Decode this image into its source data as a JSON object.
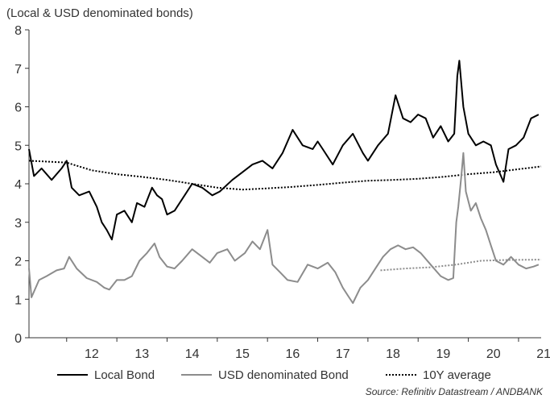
{
  "chart_data": {
    "type": "line",
    "subtitle": "(Local & USD denominated bonds)",
    "source": "Source: Refinitiv Datastream / ANDBANK",
    "x_ticks": [
      "12",
      "13",
      "14",
      "15",
      "16",
      "17",
      "18",
      "19",
      "20",
      "21"
    ],
    "y_ticks": [
      "0",
      "1",
      "2",
      "3",
      "4",
      "5",
      "6",
      "7",
      "8"
    ],
    "xlim": [
      2011.25,
      2021.45
    ],
    "ylim": [
      0,
      8
    ],
    "grid": false,
    "legend_position": "bottom",
    "series": [
      {
        "name": "Local Bond",
        "color": "#000000",
        "style": "solid",
        "points": [
          [
            2011.25,
            4.9
          ],
          [
            2011.35,
            4.2
          ],
          [
            2011.5,
            4.4
          ],
          [
            2011.7,
            4.1
          ],
          [
            2011.9,
            4.4
          ],
          [
            2012.0,
            4.6
          ],
          [
            2012.1,
            3.9
          ],
          [
            2012.25,
            3.7
          ],
          [
            2012.45,
            3.8
          ],
          [
            2012.6,
            3.4
          ],
          [
            2012.7,
            3.0
          ],
          [
            2012.8,
            2.8
          ],
          [
            2012.9,
            2.55
          ],
          [
            2013.0,
            3.2
          ],
          [
            2013.15,
            3.3
          ],
          [
            2013.3,
            3.0
          ],
          [
            2013.4,
            3.5
          ],
          [
            2013.55,
            3.4
          ],
          [
            2013.7,
            3.9
          ],
          [
            2013.8,
            3.7
          ],
          [
            2013.9,
            3.6
          ],
          [
            2014.0,
            3.2
          ],
          [
            2014.15,
            3.3
          ],
          [
            2014.35,
            3.7
          ],
          [
            2014.5,
            4.0
          ],
          [
            2014.7,
            3.9
          ],
          [
            2014.9,
            3.7
          ],
          [
            2015.05,
            3.8
          ],
          [
            2015.3,
            4.1
          ],
          [
            2015.5,
            4.3
          ],
          [
            2015.7,
            4.5
          ],
          [
            2015.9,
            4.6
          ],
          [
            2016.1,
            4.4
          ],
          [
            2016.3,
            4.8
          ],
          [
            2016.5,
            5.4
          ],
          [
            2016.7,
            5.0
          ],
          [
            2016.9,
            4.9
          ],
          [
            2017.0,
            5.1
          ],
          [
            2017.1,
            4.9
          ],
          [
            2017.3,
            4.5
          ],
          [
            2017.5,
            5.0
          ],
          [
            2017.7,
            5.3
          ],
          [
            2017.9,
            4.8
          ],
          [
            2018.0,
            4.6
          ],
          [
            2018.2,
            5.0
          ],
          [
            2018.4,
            5.3
          ],
          [
            2018.55,
            6.3
          ],
          [
            2018.7,
            5.7
          ],
          [
            2018.85,
            5.6
          ],
          [
            2019.0,
            5.8
          ],
          [
            2019.15,
            5.7
          ],
          [
            2019.3,
            5.2
          ],
          [
            2019.45,
            5.5
          ],
          [
            2019.6,
            5.1
          ],
          [
            2019.72,
            5.3
          ],
          [
            2019.78,
            6.8
          ],
          [
            2019.82,
            7.2
          ],
          [
            2019.9,
            6.0
          ],
          [
            2020.0,
            5.3
          ],
          [
            2020.15,
            5.0
          ],
          [
            2020.3,
            5.1
          ],
          [
            2020.45,
            5.0
          ],
          [
            2020.55,
            4.5
          ],
          [
            2020.65,
            4.2
          ],
          [
            2020.7,
            4.05
          ],
          [
            2020.8,
            4.9
          ],
          [
            2020.95,
            5.0
          ],
          [
            2021.1,
            5.2
          ],
          [
            2021.25,
            5.7
          ],
          [
            2021.4,
            5.8
          ]
        ]
      },
      {
        "name": "USD denominated Bond",
        "color": "#8c8c8c",
        "style": "solid",
        "points": [
          [
            2011.25,
            1.8
          ],
          [
            2011.3,
            1.05
          ],
          [
            2011.45,
            1.5
          ],
          [
            2011.6,
            1.6
          ],
          [
            2011.8,
            1.75
          ],
          [
            2011.95,
            1.8
          ],
          [
            2012.05,
            2.1
          ],
          [
            2012.2,
            1.8
          ],
          [
            2012.4,
            1.55
          ],
          [
            2012.6,
            1.45
          ],
          [
            2012.75,
            1.3
          ],
          [
            2012.85,
            1.25
          ],
          [
            2013.0,
            1.5
          ],
          [
            2013.15,
            1.5
          ],
          [
            2013.3,
            1.6
          ],
          [
            2013.45,
            2.0
          ],
          [
            2013.6,
            2.2
          ],
          [
            2013.75,
            2.45
          ],
          [
            2013.85,
            2.1
          ],
          [
            2014.0,
            1.85
          ],
          [
            2014.15,
            1.8
          ],
          [
            2014.3,
            2.0
          ],
          [
            2014.5,
            2.3
          ],
          [
            2014.7,
            2.1
          ],
          [
            2014.85,
            1.95
          ],
          [
            2015.0,
            2.2
          ],
          [
            2015.2,
            2.3
          ],
          [
            2015.35,
            2.0
          ],
          [
            2015.55,
            2.2
          ],
          [
            2015.7,
            2.5
          ],
          [
            2015.85,
            2.3
          ],
          [
            2016.0,
            2.8
          ],
          [
            2016.1,
            1.9
          ],
          [
            2016.25,
            1.7
          ],
          [
            2016.4,
            1.5
          ],
          [
            2016.6,
            1.45
          ],
          [
            2016.8,
            1.9
          ],
          [
            2017.0,
            1.8
          ],
          [
            2017.2,
            1.95
          ],
          [
            2017.35,
            1.7
          ],
          [
            2017.5,
            1.3
          ],
          [
            2017.6,
            1.1
          ],
          [
            2017.7,
            0.9
          ],
          [
            2017.85,
            1.3
          ],
          [
            2018.0,
            1.5
          ],
          [
            2018.15,
            1.8
          ],
          [
            2018.3,
            2.1
          ],
          [
            2018.45,
            2.3
          ],
          [
            2018.6,
            2.4
          ],
          [
            2018.75,
            2.3
          ],
          [
            2018.9,
            2.35
          ],
          [
            2019.05,
            2.2
          ],
          [
            2019.25,
            1.9
          ],
          [
            2019.45,
            1.6
          ],
          [
            2019.6,
            1.5
          ],
          [
            2019.7,
            1.55
          ],
          [
            2019.76,
            3.0
          ],
          [
            2019.8,
            3.4
          ],
          [
            2019.86,
            4.2
          ],
          [
            2019.9,
            4.8
          ],
          [
            2019.95,
            3.8
          ],
          [
            2020.05,
            3.3
          ],
          [
            2020.15,
            3.5
          ],
          [
            2020.25,
            3.1
          ],
          [
            2020.35,
            2.8
          ],
          [
            2020.45,
            2.4
          ],
          [
            2020.55,
            2.0
          ],
          [
            2020.7,
            1.9
          ],
          [
            2020.85,
            2.1
          ],
          [
            2021.0,
            1.9
          ],
          [
            2021.15,
            1.8
          ],
          [
            2021.3,
            1.85
          ],
          [
            2021.4,
            1.9
          ]
        ]
      },
      {
        "name": "10Y average",
        "color": "#000000",
        "style": "dotted",
        "points": [
          [
            2011.25,
            4.6
          ],
          [
            2012.0,
            4.55
          ],
          [
            2012.5,
            4.35
          ],
          [
            2013.0,
            4.25
          ],
          [
            2013.5,
            4.18
          ],
          [
            2014.0,
            4.1
          ],
          [
            2014.5,
            4.0
          ],
          [
            2015.0,
            3.9
          ],
          [
            2015.5,
            3.85
          ],
          [
            2016.0,
            3.88
          ],
          [
            2016.5,
            3.92
          ],
          [
            2017.0,
            3.97
          ],
          [
            2017.5,
            4.03
          ],
          [
            2018.0,
            4.08
          ],
          [
            2018.5,
            4.1
          ],
          [
            2019.0,
            4.13
          ],
          [
            2019.5,
            4.18
          ],
          [
            2020.0,
            4.25
          ],
          [
            2020.5,
            4.3
          ],
          [
            2021.0,
            4.38
          ],
          [
            2021.45,
            4.45
          ]
        ]
      },
      {
        "name": "10Y average (USD)",
        "color": "#8c8c8c",
        "style": "dotted",
        "points": [
          [
            2018.25,
            1.75
          ],
          [
            2018.75,
            1.8
          ],
          [
            2019.25,
            1.83
          ],
          [
            2019.75,
            1.9
          ],
          [
            2020.25,
            2.0
          ],
          [
            2020.75,
            2.02
          ],
          [
            2021.45,
            2.03
          ]
        ]
      }
    ]
  }
}
